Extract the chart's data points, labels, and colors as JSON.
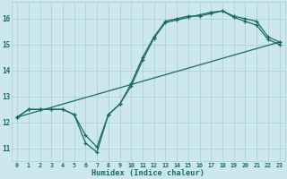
{
  "xlabel": "Humidex (Indice chaleur)",
  "bg_color": "#cce8ee",
  "grid_color": "#aacdd6",
  "line_color": "#1a6b62",
  "xlim": [
    -0.5,
    23.5
  ],
  "ylim": [
    10.5,
    16.65
  ],
  "yticks": [
    11,
    12,
    13,
    14,
    15,
    16
  ],
  "xticks": [
    0,
    1,
    2,
    3,
    4,
    5,
    6,
    7,
    8,
    9,
    10,
    11,
    12,
    13,
    14,
    15,
    16,
    17,
    18,
    19,
    20,
    21,
    22,
    23
  ],
  "line1_x": [
    0,
    1,
    2,
    3,
    4,
    5,
    6,
    7,
    8,
    9,
    10,
    11,
    12,
    13,
    14,
    15,
    16,
    17,
    18,
    19,
    20,
    21,
    22,
    23
  ],
  "line1_y": [
    12.2,
    12.5,
    12.5,
    12.5,
    12.5,
    12.3,
    11.2,
    10.85,
    12.3,
    12.7,
    13.5,
    14.5,
    15.3,
    15.9,
    16.0,
    16.1,
    16.1,
    16.2,
    16.3,
    16.1,
    16.0,
    15.9,
    15.3,
    15.1
  ],
  "line2_x": [
    0,
    1,
    2,
    3,
    4,
    5,
    6,
    7,
    8,
    9,
    10,
    11,
    12,
    13,
    14,
    15,
    16,
    17,
    18,
    19,
    20,
    21,
    22,
    23
  ],
  "line2_y": [
    12.2,
    12.5,
    12.5,
    12.5,
    12.5,
    12.3,
    11.5,
    11.05,
    12.3,
    12.7,
    13.4,
    14.4,
    15.25,
    15.85,
    15.95,
    16.05,
    16.15,
    16.25,
    16.3,
    16.05,
    15.9,
    15.75,
    15.2,
    15.0
  ],
  "line3_x": [
    0,
    23
  ],
  "line3_y": [
    12.2,
    15.1
  ]
}
